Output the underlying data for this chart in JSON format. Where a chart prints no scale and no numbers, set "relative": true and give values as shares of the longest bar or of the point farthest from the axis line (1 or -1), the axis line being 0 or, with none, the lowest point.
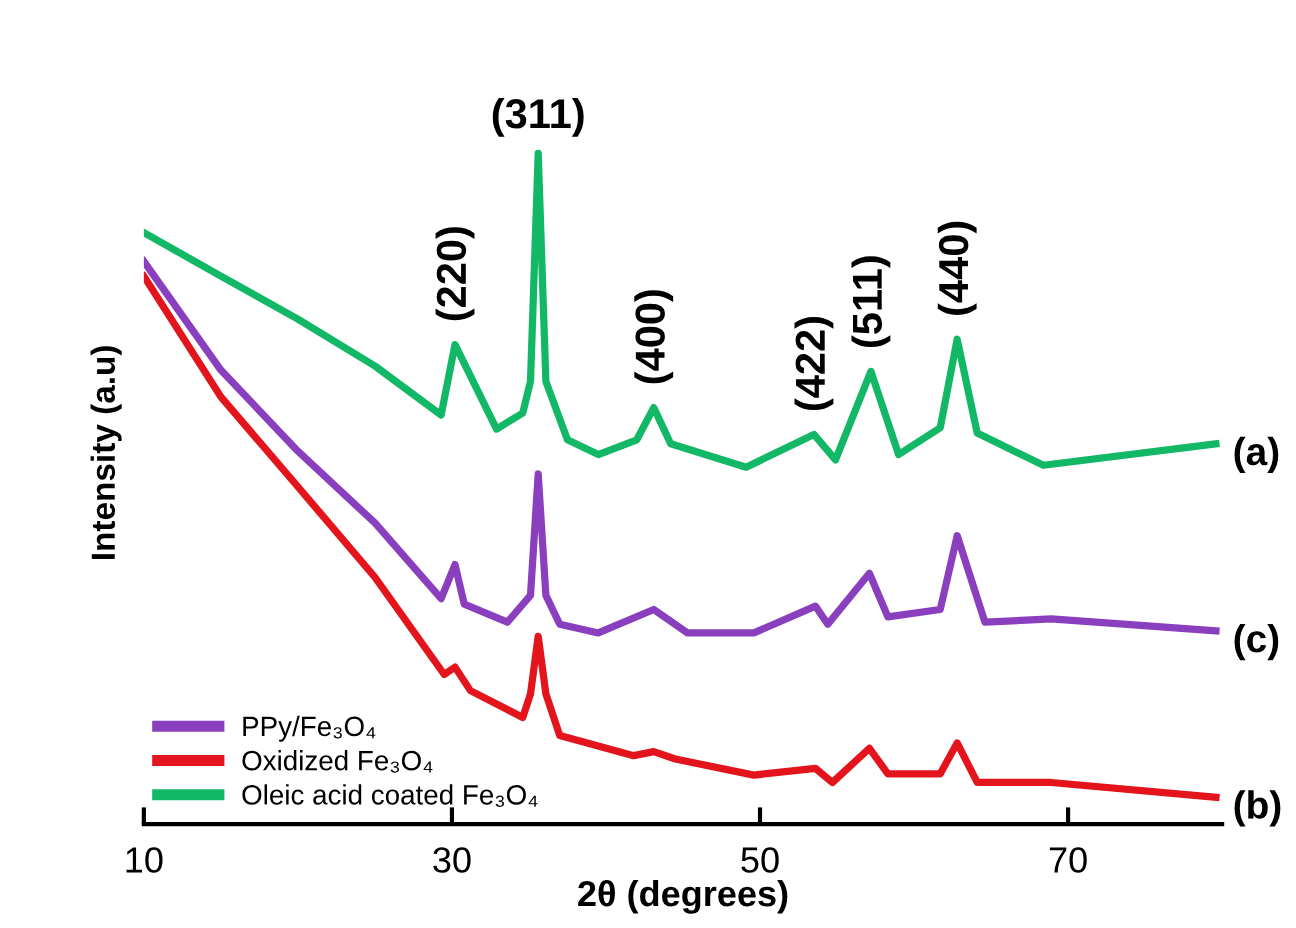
{
  "chart_data": {
    "type": "line",
    "relative": true,
    "xlabel": "2θ (degrees)",
    "ylabel": "Intensity (a.u)",
    "xlim": [
      10,
      80
    ],
    "xticks": [
      10,
      30,
      50,
      70
    ],
    "grid": false,
    "legend": "bottom left",
    "marker": "none",
    "line_style": "solid",
    "series": [
      {
        "name": "PPy/Fe₃O₄",
        "color": "#8a3fbf",
        "x": [
          10,
          15,
          20,
          25,
          29.3,
          30.2,
          30.8,
          33.6,
          35.1,
          35.6,
          36.1,
          37.0,
          39.5,
          43.1,
          45.3,
          49.6,
          53.6,
          54.4,
          57.1,
          58.3,
          61.7,
          62.8,
          64.6,
          68.9,
          79.6
        ],
        "values": [
          0.839,
          0.677,
          0.556,
          0.449,
          0.336,
          0.387,
          0.328,
          0.301,
          0.341,
          0.522,
          0.341,
          0.298,
          0.285,
          0.32,
          0.285,
          0.285,
          0.325,
          0.298,
          0.374,
          0.309,
          0.32,
          0.43,
          0.301,
          0.306,
          0.288
        ]
      },
      {
        "name": "Oxidized Fe₃O₄",
        "color": "#e3141b",
        "x": [
          10,
          15,
          20,
          25,
          29.5,
          30.2,
          31.2,
          34.6,
          35.1,
          35.6,
          36.1,
          37.0,
          41.8,
          43.1,
          44.5,
          49.6,
          53.6,
          54.7,
          57.1,
          58.3,
          61.7,
          62.8,
          64.1,
          68.9,
          79.6
        ],
        "values": [
          0.817,
          0.637,
          0.503,
          0.368,
          0.223,
          0.234,
          0.199,
          0.159,
          0.194,
          0.28,
          0.194,
          0.132,
          0.102,
          0.108,
          0.097,
          0.073,
          0.083,
          0.062,
          0.113,
          0.075,
          0.075,
          0.121,
          0.062,
          0.062,
          0.04
        ]
      },
      {
        "name": "Oleic acid coated Fe₃O₄",
        "color": "#12b866",
        "x": [
          10,
          15,
          20,
          25,
          29.3,
          30.2,
          32.9,
          34.6,
          35.1,
          35.6,
          36.1,
          37.5,
          39.5,
          42,
          43.1,
          44.2,
          49.1,
          53.5,
          54.9,
          57.2,
          59,
          61.7,
          62.8,
          64.1,
          68.4,
          79.6
        ],
        "values": [
          0.882,
          0.817,
          0.753,
          0.683,
          0.61,
          0.715,
          0.589,
          0.613,
          0.66,
          1.0,
          0.66,
          0.573,
          0.551,
          0.573,
          0.621,
          0.567,
          0.532,
          0.581,
          0.543,
          0.675,
          0.551,
          0.591,
          0.723,
          0.583,
          0.535,
          0.567
        ]
      }
    ],
    "annotations": [
      {
        "text": "(220)",
        "x": 30.2,
        "y": 0.715
      },
      {
        "text": "(311)",
        "x": 35.6,
        "y": 1.0
      },
      {
        "text": "(400)",
        "x": 43.1,
        "y": 0.621
      },
      {
        "text": "(422)",
        "x": 53.5,
        "y": 0.581
      },
      {
        "text": "(511)",
        "x": 57.2,
        "y": 0.675
      },
      {
        "text": "(440)",
        "x": 62.8,
        "y": 0.723
      },
      {
        "text": "(a)",
        "x": 79.6,
        "y": 0.567
      },
      {
        "text": "(c)",
        "x": 79.6,
        "y": 0.288
      },
      {
        "text": "(b)",
        "x": 79.6,
        "y": 0.04
      }
    ]
  }
}
